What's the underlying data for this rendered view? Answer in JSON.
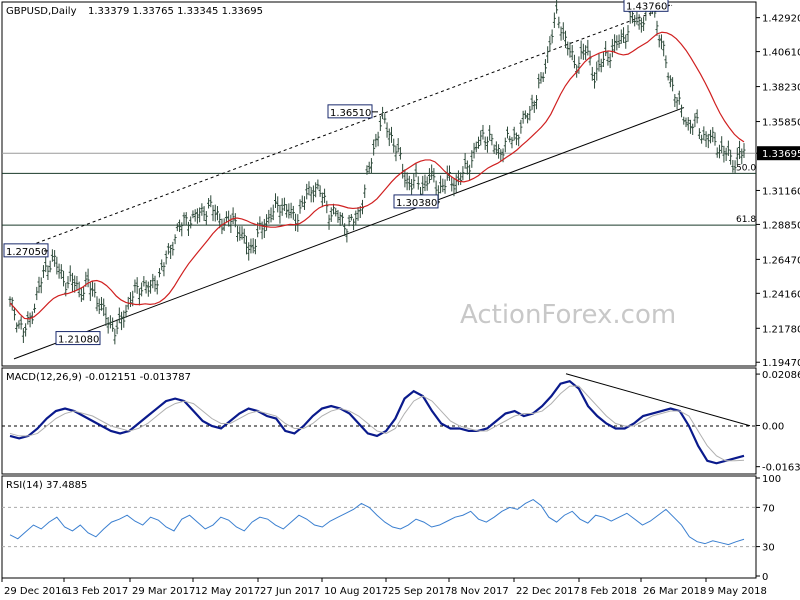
{
  "header": {
    "symbol": "GBPUSD,Daily",
    "ohlc": "1.33379 1.33765 1.33345 1.33695",
    "watermark": "ActionForex.com"
  },
  "colors": {
    "price_bars": "#2e4a3a",
    "sma": "#d02020",
    "macd": "#0a1a8c",
    "macd_signal": "#b0b0b0",
    "rsi": "#3a7fd0",
    "price_tag_bg": "#000000",
    "price_tag_fg": "#ffffff",
    "swing_box_border": "#1a2a6c"
  },
  "chart_data": [
    {
      "type": "candlestick",
      "title": "GBPUSD,Daily 1.33379 1.33765 1.33345 1.33695",
      "x_tick_labels": [
        "29 Dec 2016",
        "13 Feb 2017",
        "29 Mar 2017",
        "12 May 2017",
        "27 Jun 2017",
        "10 Aug 2017",
        "25 Sep 2017",
        "8 Nov 2017",
        "22 Dec 2017",
        "8 Feb 2018",
        "26 Mar 2018",
        "9 May 2018"
      ],
      "y_tick_labels": [
        "1.42920",
        "1.40610",
        "1.38230",
        "1.35850",
        "1.33695",
        "1.31160",
        "1.28850",
        "1.26470",
        "1.24160",
        "1.21780",
        "1.19470"
      ],
      "ylim": [
        1.1935,
        1.4385
      ],
      "last_price": "1.33695",
      "swing_labels": [
        {
          "text": "1.27050",
          "price": 1.2705
        },
        {
          "text": "1.21080",
          "price": 1.2108
        },
        {
          "text": "1.36510",
          "price": 1.3651
        },
        {
          "text": "1.30380",
          "price": 1.3038
        },
        {
          "text": "1.43760",
          "price": 1.4376
        }
      ],
      "fib_levels": [
        {
          "label": "50.0",
          "price": 1.3232
        },
        {
          "label": "61.8",
          "price": 1.288
        }
      ],
      "close_series": [
        1.235,
        1.228,
        1.22,
        1.215,
        1.223,
        1.233,
        1.245,
        1.255,
        1.262,
        1.265,
        1.258,
        1.252,
        1.248,
        1.25,
        1.246,
        1.242,
        1.248,
        1.245,
        1.238,
        1.23,
        1.225,
        1.22,
        1.215,
        1.223,
        1.23,
        1.238,
        1.242,
        1.246,
        1.248,
        1.243,
        1.25,
        1.255,
        1.262,
        1.27,
        1.28,
        1.286,
        1.29,
        1.293,
        1.292,
        1.295,
        1.298,
        1.3,
        1.298,
        1.295,
        1.29,
        1.287,
        1.295,
        1.288,
        1.278,
        1.275,
        1.272,
        1.278,
        1.285,
        1.29,
        1.295,
        1.298,
        1.302,
        1.3,
        1.295,
        1.292,
        1.298,
        1.305,
        1.31,
        1.315,
        1.311,
        1.305,
        1.298,
        1.296,
        1.294,
        1.291,
        1.287,
        1.29,
        1.295,
        1.305,
        1.32,
        1.335,
        1.35,
        1.36,
        1.355,
        1.348,
        1.34,
        1.33,
        1.32,
        1.315,
        1.318,
        1.314,
        1.316,
        1.32,
        1.318,
        1.312,
        1.315,
        1.32,
        1.318,
        1.316,
        1.325,
        1.33,
        1.335,
        1.343,
        1.35,
        1.348,
        1.342,
        1.338,
        1.34,
        1.345,
        1.348,
        1.35,
        1.356,
        1.362,
        1.37,
        1.375,
        1.385,
        1.4,
        1.415,
        1.43,
        1.425,
        1.415,
        1.405,
        1.395,
        1.402,
        1.408,
        1.4,
        1.39,
        1.395,
        1.4,
        1.405,
        1.408,
        1.412,
        1.415,
        1.422,
        1.43,
        1.425,
        1.428,
        1.433,
        1.4376,
        1.425,
        1.41,
        1.395,
        1.385,
        1.375,
        1.365,
        1.36,
        1.356,
        1.358,
        1.352,
        1.348,
        1.347,
        1.345,
        1.34,
        1.338,
        1.334,
        1.33,
        1.336,
        1.337
      ],
      "sma_label": "",
      "trendlines": "ascending channel (upper dashed, lower solid)"
    },
    {
      "type": "line",
      "title": "MACD(12,26,9) -0.012151 -0.013787",
      "y_tick_labels": [
        "0.020861",
        "0.00",
        "0.00",
        "-0.016357"
      ],
      "ylim": [
        -0.0185,
        0.0225
      ],
      "series": [
        {
          "name": "MACD",
          "values": [
            -0.004,
            -0.005,
            -0.004,
            -0.001,
            0.003,
            0.006,
            0.007,
            0.006,
            0.004,
            0.002,
            0.0,
            -0.002,
            -0.003,
            -0.002,
            0.001,
            0.004,
            0.007,
            0.01,
            0.011,
            0.01,
            0.006,
            0.002,
            0.0,
            -0.001,
            0.002,
            0.005,
            0.007,
            0.006,
            0.004,
            0.003,
            -0.002,
            -0.003,
            0.0,
            0.004,
            0.007,
            0.008,
            0.007,
            0.005,
            0.001,
            -0.003,
            -0.004,
            -0.002,
            0.003,
            0.011,
            0.014,
            0.012,
            0.006,
            0.001,
            -0.001,
            -0.001,
            -0.002,
            -0.002,
            -0.001,
            0.002,
            0.005,
            0.006,
            0.004,
            0.005,
            0.008,
            0.012,
            0.017,
            0.018,
            0.015,
            0.008,
            0.004,
            0.001,
            -0.001,
            -0.001,
            0.001,
            0.004,
            0.005,
            0.006,
            0.007,
            0.006,
            0.0,
            -0.008,
            -0.014,
            -0.015,
            -0.014,
            -0.013,
            -0.012
          ]
        },
        {
          "name": "Signal",
          "values": [
            -0.003,
            -0.004,
            -0.004,
            -0.003,
            0.0,
            0.003,
            0.005,
            0.006,
            0.005,
            0.004,
            0.002,
            0.0,
            -0.001,
            -0.002,
            -0.001,
            0.001,
            0.004,
            0.007,
            0.009,
            0.01,
            0.009,
            0.006,
            0.003,
            0.001,
            0.001,
            0.003,
            0.005,
            0.006,
            0.005,
            0.004,
            0.001,
            -0.001,
            -0.001,
            0.001,
            0.004,
            0.006,
            0.007,
            0.006,
            0.004,
            0.001,
            -0.002,
            -0.003,
            -0.001,
            0.005,
            0.01,
            0.012,
            0.01,
            0.006,
            0.002,
            0.0,
            -0.001,
            -0.002,
            -0.002,
            0.0,
            0.002,
            0.004,
            0.005,
            0.005,
            0.006,
            0.009,
            0.013,
            0.016,
            0.016,
            0.012,
            0.008,
            0.004,
            0.001,
            0.0,
            0.0,
            0.002,
            0.004,
            0.005,
            0.006,
            0.006,
            0.004,
            -0.002,
            -0.008,
            -0.012,
            -0.014,
            -0.014,
            -0.0138
          ]
        }
      ],
      "trendline": "descending line from Jan 2018 high to May 2018"
    },
    {
      "type": "line",
      "title": "RSI(14) 37.4885",
      "y_tick_labels": [
        "100",
        "70",
        "30",
        "0"
      ],
      "ylim": [
        0,
        100
      ],
      "levels": [
        70,
        30
      ],
      "series": [
        {
          "name": "RSI",
          "values": [
            42,
            38,
            45,
            52,
            48,
            55,
            60,
            50,
            46,
            52,
            44,
            40,
            48,
            55,
            58,
            62,
            56,
            52,
            60,
            57,
            50,
            46,
            58,
            62,
            55,
            48,
            52,
            60,
            57,
            50,
            46,
            55,
            60,
            58,
            52,
            48,
            55,
            62,
            58,
            52,
            50,
            56,
            60,
            64,
            68,
            74,
            70,
            62,
            55,
            50,
            48,
            52,
            58,
            55,
            50,
            52,
            56,
            60,
            62,
            66,
            58,
            55,
            60,
            66,
            70,
            68,
            74,
            78,
            72,
            60,
            55,
            62,
            66,
            58,
            54,
            62,
            60,
            56,
            60,
            64,
            58,
            52,
            56,
            62,
            68,
            60,
            52,
            40,
            35,
            33,
            36,
            34,
            32,
            35,
            37.49
          ]
        }
      ]
    }
  ]
}
